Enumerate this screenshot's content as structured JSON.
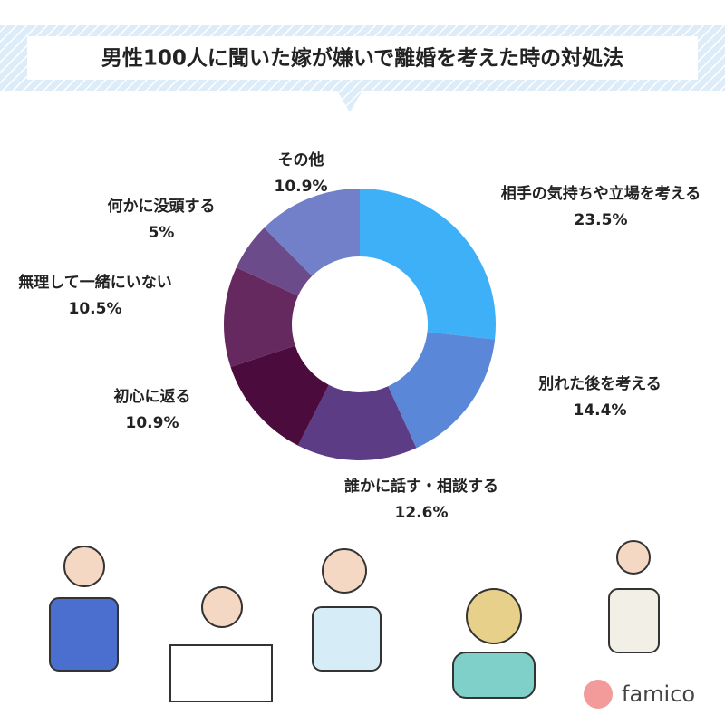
{
  "chart_data": {
    "type": "donut",
    "title": "男性100人に聞いた嫁が嫌いで離婚を考えた時の対処法",
    "categories": [
      "相手の気持ちや立場を考える",
      "別れた後を考える",
      "誰かに話す・相談する",
      "初心に返る",
      "無理して一緒にいない",
      "何かに没頭する",
      "その他"
    ],
    "values": [
      23.5,
      14.4,
      12.6,
      10.9,
      10.5,
      5,
      10.9
    ],
    "value_labels": [
      "23.5%",
      "14.4%",
      "12.6%",
      "10.9%",
      "10.5%",
      "5%",
      "10.9%"
    ],
    "colors": [
      "#3db0f7",
      "#5b87d8",
      "#5d3c86",
      "#4b0b3c",
      "#66295f",
      "#6c4b8b",
      "#7180c9"
    ]
  },
  "brand": "famico"
}
